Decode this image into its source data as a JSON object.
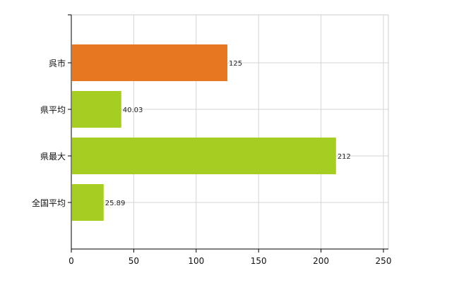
{
  "chart_data": {
    "type": "bar",
    "orientation": "horizontal",
    "categories": [
      "呉市",
      "県平均",
      "県最大",
      "全国平均"
    ],
    "values": [
      125,
      40.03,
      212,
      25.89
    ],
    "data_labels": [
      "125",
      "40.03",
      "212",
      "25.89"
    ],
    "bar_colors": [
      "#E87722",
      "#A6CE22",
      "#A6CE22",
      "#A6CE22"
    ],
    "xlim": [
      0,
      250
    ],
    "x_ticks": [
      0,
      50,
      100,
      150,
      200,
      250
    ],
    "grid": true,
    "legend": "none"
  }
}
